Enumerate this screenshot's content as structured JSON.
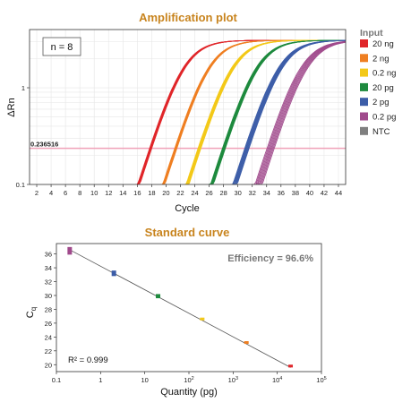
{
  "colors": {
    "title": "#c8841e",
    "grid": "#e6e6e6",
    "threshold": "#f0a0b8",
    "threshold_label": "#cc0000",
    "fit_line": "#555555",
    "efficiency": "#777777"
  },
  "chart_data": [
    {
      "type": "line",
      "title": "Amplification plot",
      "xlabel": "Cycle",
      "ylabel": "ΔRn",
      "y_scale": "log",
      "xlim": [
        1,
        45
      ],
      "ylim": [
        0.1,
        4
      ],
      "x_ticks": [
        2,
        4,
        6,
        8,
        10,
        12,
        14,
        16,
        18,
        20,
        22,
        24,
        26,
        28,
        30,
        32,
        34,
        36,
        38,
        40,
        42,
        44
      ],
      "y_ticks": [
        {
          "value": 0.1,
          "label": "0.1"
        },
        {
          "value": 1,
          "label": "1"
        }
      ],
      "threshold": {
        "value": 0.236516,
        "label": "0.236516"
      },
      "annotation": "n = 8",
      "replicates": 8,
      "plateau": 3.1,
      "legend_title": "Input",
      "legend_position": "right",
      "series": [
        {
          "name": "20 ng",
          "color": "#e0262a",
          "crossing_cycle": 19.7,
          "replicate_spread": 0.15
        },
        {
          "name": "2 ng",
          "color": "#ef7f22",
          "crossing_cycle": 23.2,
          "replicate_spread": 0.15
        },
        {
          "name": "0.2 ng",
          "color": "#f3c919",
          "crossing_cycle": 26.5,
          "replicate_spread": 0.2
        },
        {
          "name": "20 pg",
          "color": "#1e8a3e",
          "crossing_cycle": 29.9,
          "replicate_spread": 0.2
        },
        {
          "name": "2 pg",
          "color": "#3c5da8",
          "crossing_cycle": 33.1,
          "replicate_spread": 0.3
        },
        {
          "name": "0.2 pg",
          "color": "#a04a8c",
          "crossing_cycle": 36.4,
          "replicate_spread": 0.5
        },
        {
          "name": "NTC",
          "color": "#7f7f7f",
          "crossing_cycle": null,
          "replicate_spread": 0
        }
      ]
    },
    {
      "type": "scatter",
      "title": "Standard curve",
      "xlabel": "Quantity (pg)",
      "ylabel": "C",
      "ylabel_sub": "q",
      "x_scale": "log",
      "xlim": [
        0.1,
        100000
      ],
      "ylim": [
        19,
        37.5
      ],
      "x_ticks": [
        {
          "value": 0.1,
          "label": "0.1",
          "exp": ""
        },
        {
          "value": 1,
          "label": "1",
          "exp": ""
        },
        {
          "value": 10,
          "label": "10",
          "exp": ""
        },
        {
          "value": 100,
          "label": "10",
          "exp": "2"
        },
        {
          "value": 1000,
          "label": "10",
          "exp": "3"
        },
        {
          "value": 10000,
          "label": "10",
          "exp": "4"
        },
        {
          "value": 100000,
          "label": "10",
          "exp": "5"
        }
      ],
      "y_ticks": [
        20,
        22,
        24,
        26,
        28,
        30,
        32,
        34,
        36
      ],
      "efficiency_label": "Efficiency = 96.6%",
      "r2_label": "R² = 0.999",
      "fit": {
        "x": [
          0.2,
          20000
        ],
        "y": [
          36.6,
          19.6
        ]
      },
      "points": [
        {
          "x": 0.2,
          "y_mean": 36.4,
          "y_min": 35.9,
          "y_max": 37.0,
          "color": "#a04a8c"
        },
        {
          "x": 2,
          "y_mean": 33.2,
          "y_min": 32.8,
          "y_max": 33.6,
          "color": "#3c5da8"
        },
        {
          "x": 20,
          "y_mean": 29.9,
          "y_min": 29.6,
          "y_max": 30.2,
          "color": "#1e8a3e"
        },
        {
          "x": 200,
          "y_mean": 26.6,
          "y_min": 26.4,
          "y_max": 26.8,
          "color": "#f3c919"
        },
        {
          "x": 2000,
          "y_mean": 23.2,
          "y_min": 23.0,
          "y_max": 23.4,
          "color": "#ef7f22"
        },
        {
          "x": 20000,
          "y_mean": 19.8,
          "y_min": 19.6,
          "y_max": 20.0,
          "color": "#e0262a"
        }
      ]
    }
  ]
}
